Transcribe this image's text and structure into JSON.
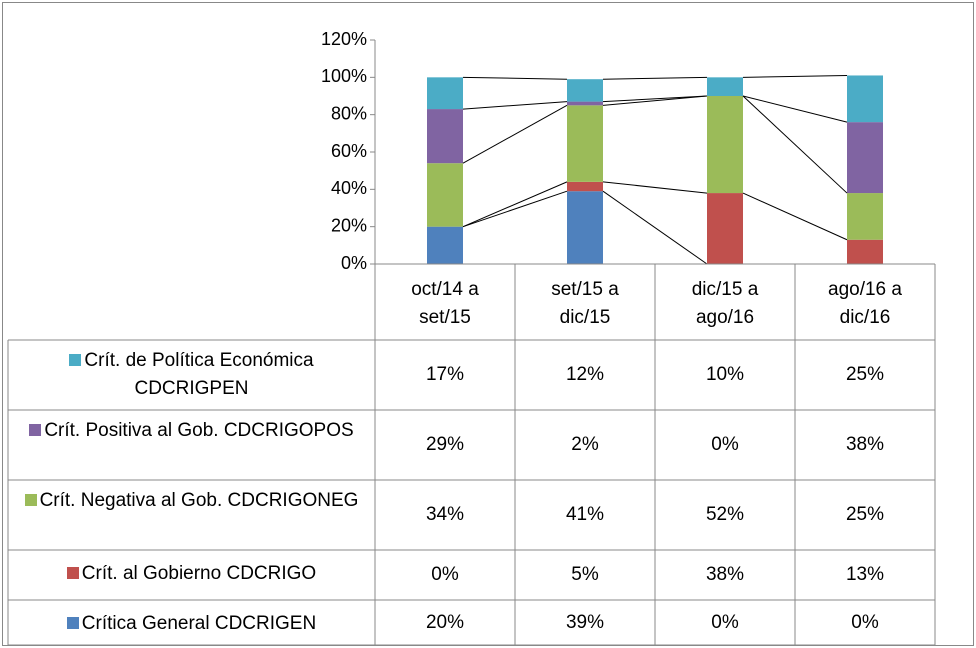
{
  "chart_data": {
    "type": "bar",
    "stacked": true,
    "data_table": true,
    "grid": false,
    "categories": [
      "oct/14 a set/15",
      "set/15 a dic/15",
      "dic/15 a ago/16",
      "ago/16 a dic/16"
    ],
    "series": [
      {
        "name": "Crítica General CDCRIGEN",
        "color": "#4f81bd",
        "values": [
          20,
          39,
          0,
          0
        ],
        "value_labels": [
          "20%",
          "39%",
          "0%",
          "0%"
        ]
      },
      {
        "name": "Crít. al Gobierno CDCRIGO",
        "color": "#c0504d",
        "values": [
          0,
          5,
          38,
          13
        ],
        "value_labels": [
          "0%",
          "5%",
          "38%",
          "13%"
        ]
      },
      {
        "name": "Crít. Negativa al Gob. CDCRIGONEG",
        "color": "#9bbb59",
        "values": [
          34,
          41,
          52,
          25
        ],
        "value_labels": [
          "34%",
          "41%",
          "52%",
          "25%"
        ]
      },
      {
        "name": "Crít. Positiva al Gob. CDCRIGOPOS",
        "color": "#8064a2",
        "values": [
          29,
          2,
          0,
          38
        ],
        "value_labels": [
          "29%",
          "2%",
          "0%",
          "38%"
        ]
      },
      {
        "name": "Crít. de Política Económica CDCRIGPEN",
        "color": "#4bacc6",
        "values": [
          17,
          12,
          10,
          25
        ],
        "value_labels": [
          "17%",
          "12%",
          "10%",
          "25%"
        ]
      }
    ],
    "ylim": [
      0,
      120
    ],
    "yticks": [
      {
        "value": 0,
        "label": "0%"
      },
      {
        "value": 20,
        "label": "20%"
      },
      {
        "value": 40,
        "label": "40%"
      },
      {
        "value": 60,
        "label": "60%"
      },
      {
        "value": 80,
        "label": "80%"
      },
      {
        "value": 100,
        "label": "100%"
      },
      {
        "value": 120,
        "label": "120%"
      }
    ]
  }
}
